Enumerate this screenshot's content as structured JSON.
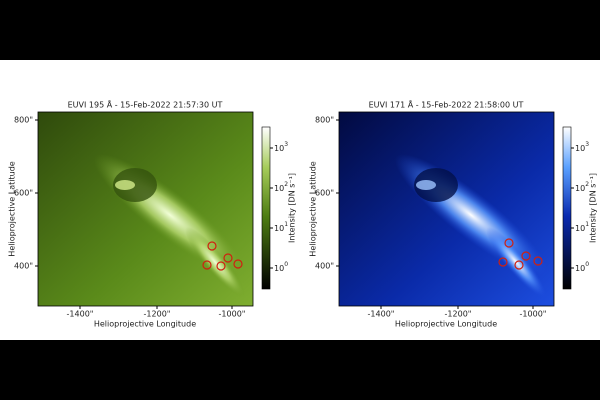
{
  "panels": [
    {
      "title": "EUVI 195 Å - 15-Feb-2022 21:57:30 UT",
      "x_label": "Helioprojective Longitude",
      "y_label": "Helioprojective Latitude",
      "x_ticks": [
        "-1400\"",
        "-1200\"",
        "-1000\""
      ],
      "y_ticks": [
        "800\"",
        "600\"",
        "400\""
      ],
      "colorbar_label": "Intensity [DN s⁻¹]",
      "colorbar_ticks": [
        {
          "base": "10",
          "exponent": "3"
        },
        {
          "base": "10",
          "exponent": "2"
        },
        {
          "base": "10",
          "exponent": "1"
        },
        {
          "base": "10",
          "exponent": "0"
        }
      ]
    },
    {
      "title": "EUVI 171 Å - 15-Feb-2022 21:58:00 UT",
      "x_label": "Helioprojective Longitude",
      "y_label": "Helioprojective Latitude",
      "x_ticks": [
        "-1400\"",
        "-1200\"",
        "-1000\""
      ],
      "y_ticks": [
        "800\"",
        "600\"",
        "400\""
      ],
      "colorbar_label": "Intensity [DN s⁻¹]",
      "colorbar_ticks": [
        {
          "base": "10",
          "exponent": "3"
        },
        {
          "base": "10",
          "exponent": "2"
        },
        {
          "base": "10",
          "exponent": "1"
        },
        {
          "base": "10",
          "exponent": "0"
        }
      ]
    }
  ]
}
